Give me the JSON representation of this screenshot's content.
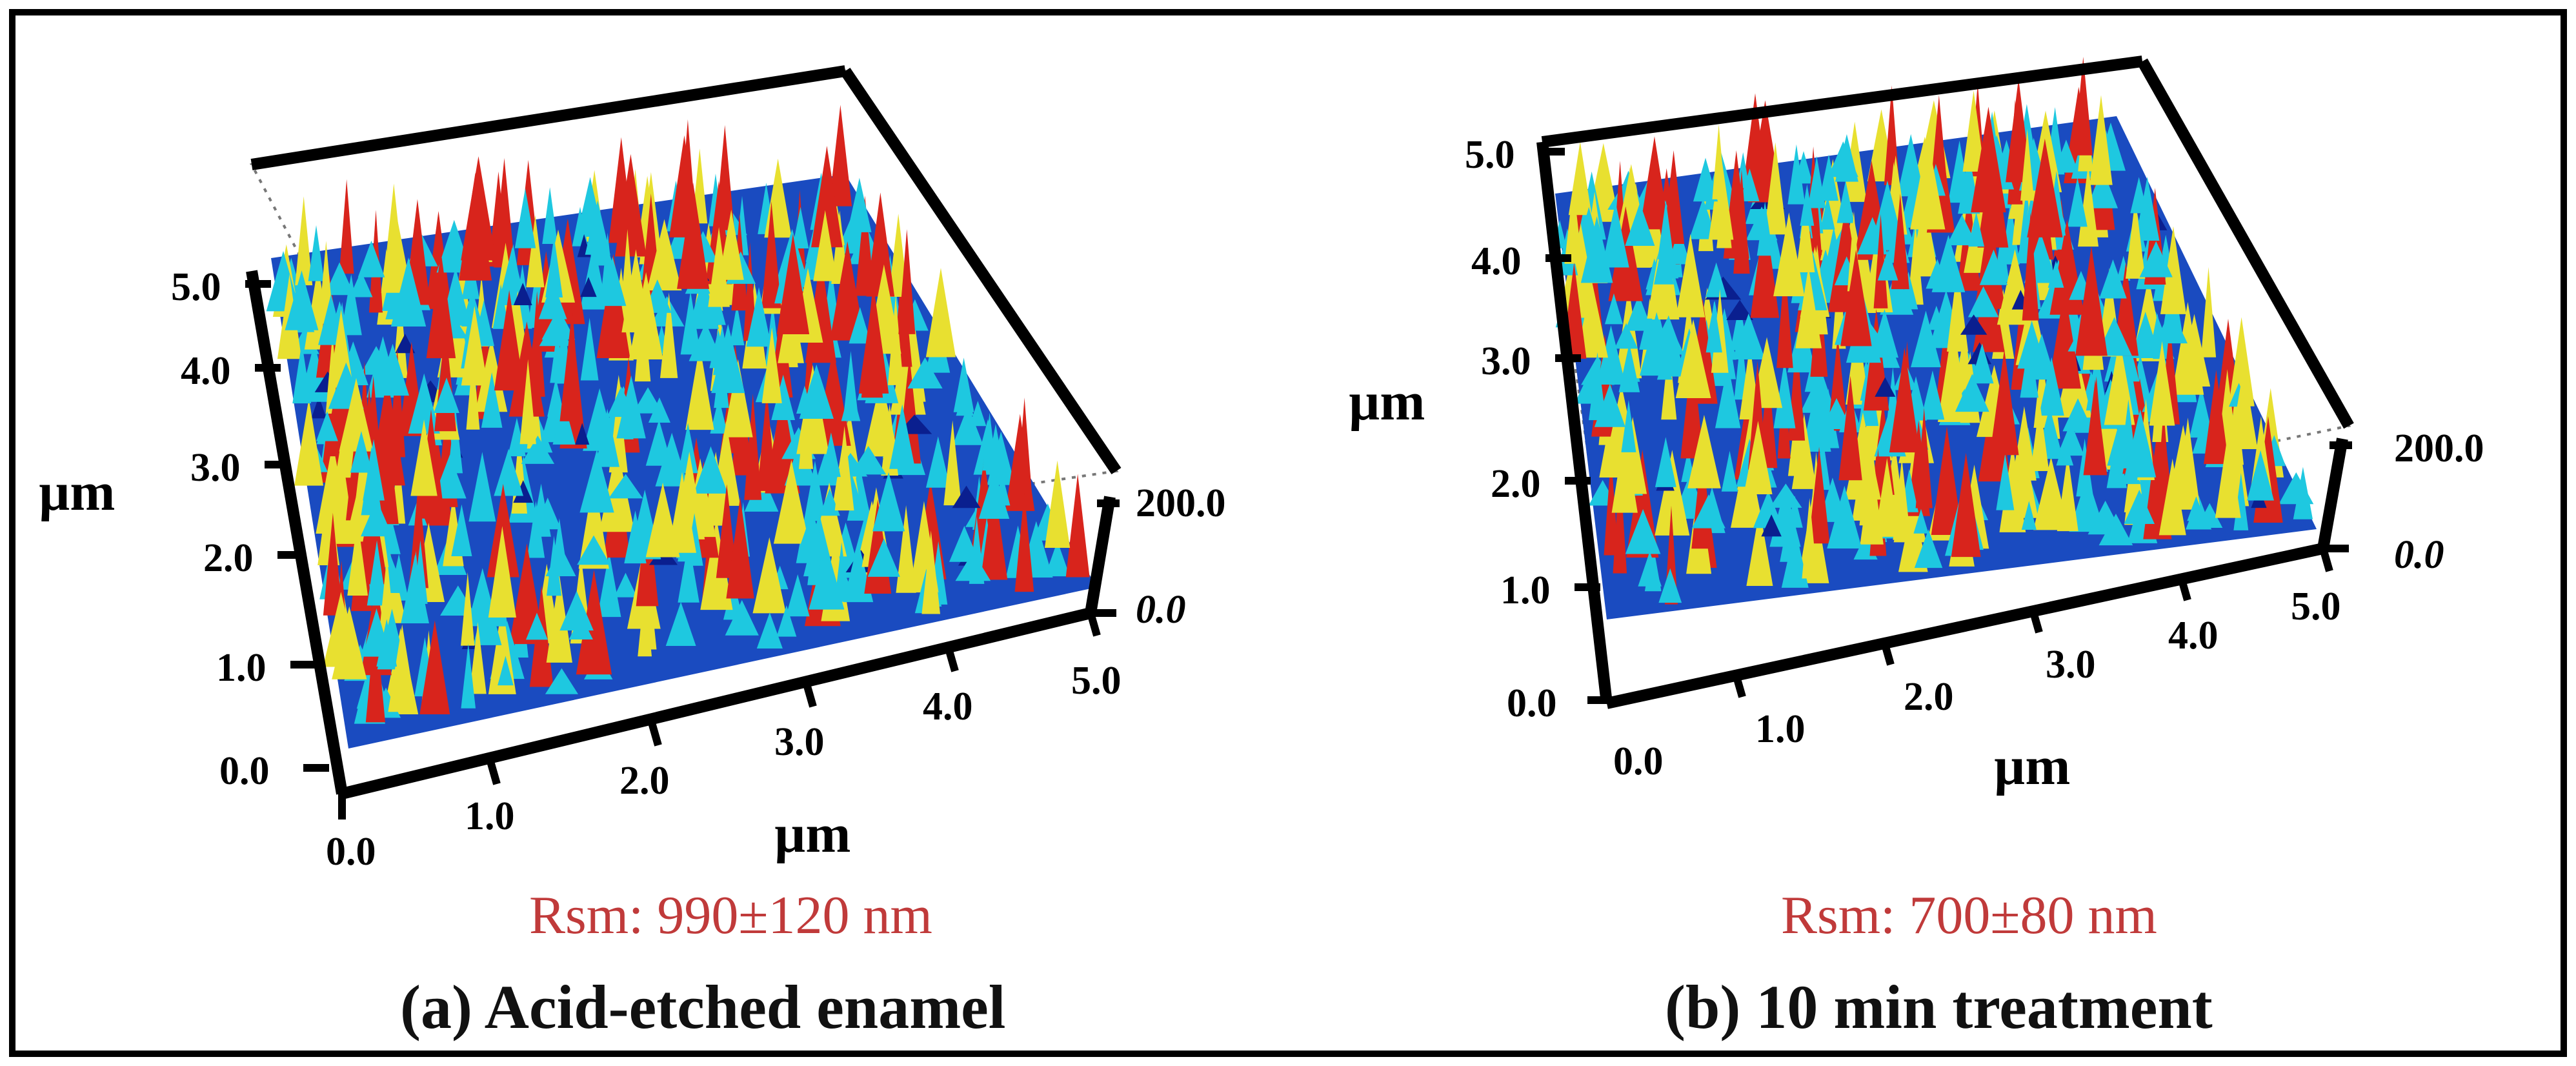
{
  "panels": [
    {
      "caption": "(a) Acid-etched enamel",
      "roughness": "Rsm: 990±120 nm",
      "z_unit": "µm",
      "x_unit": "µm",
      "z_ticks": [
        "0.0",
        "1.0",
        "2.0",
        "3.0",
        "4.0",
        "5.0"
      ],
      "x_ticks": [
        "0.0",
        "1.0",
        "2.0",
        "3.0",
        "4.0",
        "5.0"
      ],
      "y_ticks": [
        "0.0",
        "200.0"
      ]
    },
    {
      "caption": "(b) 10 min treatment",
      "roughness": "Rsm: 700±80 nm",
      "z_unit": "µm",
      "x_unit": "µm",
      "z_ticks": [
        "0.0",
        "1.0",
        "2.0",
        "3.0",
        "4.0",
        "5.0"
      ],
      "x_ticks": [
        "0.0",
        "1.0",
        "2.0",
        "3.0",
        "4.0",
        "5.0"
      ],
      "y_ticks": [
        "0.0",
        "200.0"
      ]
    }
  ],
  "colors": {
    "frame": "#000000",
    "roughness_text": "#c03a3a",
    "surface_low": "#0a1f8f",
    "surface_mid": "#1ec8e0",
    "surface_high": "#e8e030",
    "surface_peak": "#d8241c"
  }
}
